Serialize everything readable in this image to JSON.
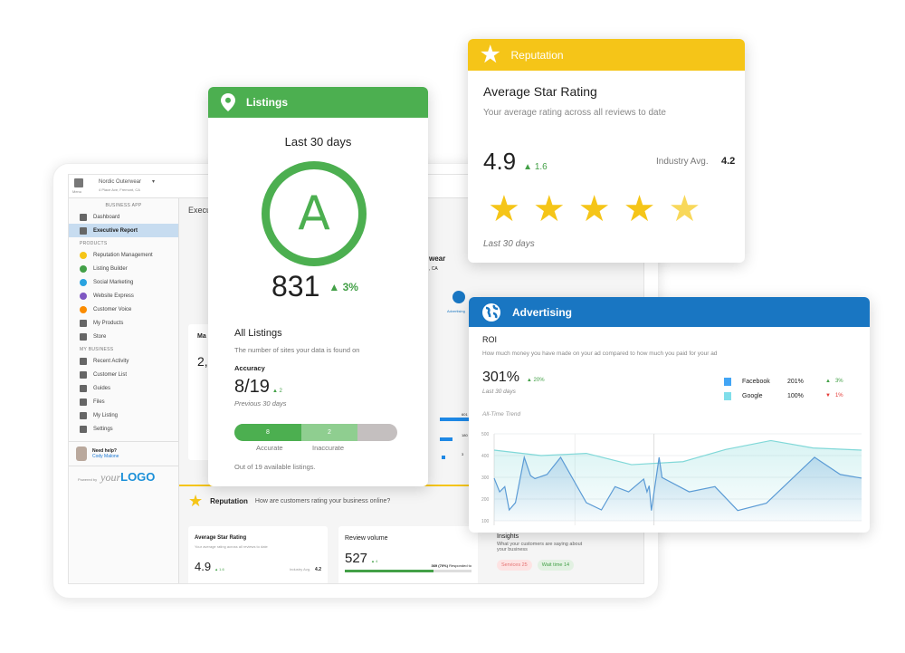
{
  "app": {
    "business_name": "Nordic Outerwear",
    "business_address": "4 Place Ave, Fremont, CA",
    "menu_label": "Menu",
    "page_title": "Executive Report",
    "sidebar": {
      "app_label": "BUSINESS APP",
      "top_items": [
        {
          "label": "Dashboard"
        },
        {
          "label": "Executive Report",
          "active": true
        }
      ],
      "products_label": "PRODUCTS",
      "products": [
        {
          "label": "Reputation Management",
          "color": "#f5c518"
        },
        {
          "label": "Listing Builder",
          "color": "#43a047"
        },
        {
          "label": "Social Marketing",
          "color": "#29a3e0"
        },
        {
          "label": "Website Express",
          "color": "#7e57c2"
        },
        {
          "label": "Customer Voice",
          "color": "#fb8c00"
        },
        {
          "label": "My Products"
        },
        {
          "label": "Store"
        }
      ],
      "business_label": "MY BUSINESS",
      "business": [
        {
          "label": "Recent Activity"
        },
        {
          "label": "Customer List"
        },
        {
          "label": "Guides"
        },
        {
          "label": "Files"
        },
        {
          "label": "My Listing"
        },
        {
          "label": "Settings"
        }
      ],
      "help_label": "Need help?",
      "help_contact": "Cody Malone",
      "powered_by": "Powered by",
      "logo_your": "your",
      "logo_logo": "LOGO"
    },
    "background": {
      "panel_title_partial": "Ma",
      "panel_value_partial": "2,",
      "name_partial": "wear",
      "addr_partial": ", CA",
      "advertising_icon_label": "Advertising",
      "bar_values": [
        "601",
        "180",
        "3"
      ]
    },
    "reputation_section": {
      "title": "Reputation",
      "subtitle": "How are customers rating your business online?",
      "avg": {
        "title": "Average Star Rating",
        "desc": "Your average rating across all reviews to date",
        "value": "4.9",
        "change": "1.6",
        "industry_label": "Industry Avg.",
        "industry_value": "4.2"
      },
      "volume": {
        "title": "Review volume",
        "value": "527",
        "change": "4",
        "responded": "369 (70%)",
        "responded_label": "Responded to",
        "progress": 0.7
      },
      "insights": {
        "title": "Insights",
        "desc": "What your customers are saying about your business",
        "tags": [
          {
            "label": "Services 25",
            "tone": "negative"
          },
          {
            "label": "Wait time 14",
            "tone": "positive"
          }
        ]
      }
    }
  },
  "listings_card": {
    "header": "Listings",
    "period": "Last 30 days",
    "grade": "A",
    "score": "831",
    "score_change": "3%",
    "all_title": "All Listings",
    "all_desc": "The number of sites your data is found on",
    "accuracy_label": "Accuracy",
    "accuracy_value": "8/19",
    "accuracy_change": "2",
    "accuracy_period": "Previous 30 days",
    "bar": {
      "accurate": 8,
      "inaccurate": 2,
      "total": 19,
      "accurate_label": "Accurate",
      "inaccurate_label": "Inaccurate",
      "accurate_value": "8",
      "inaccurate_value": "2"
    },
    "footer": "Out of 19 available listings.",
    "colors": {
      "header": "#4caf50",
      "accurate": "#4caf50",
      "inaccurate": "#8fce90",
      "rest": "#c4bfbf"
    }
  },
  "reputation_card": {
    "header": "Reputation",
    "title": "Average Star Rating",
    "desc": "Your average rating across all reviews to date",
    "value": "4.9",
    "change": "1.6",
    "industry_label": "Industry Avg.",
    "industry_value": "4.2",
    "rating": 4.9,
    "stars_max": 5,
    "period": "Last 30 days",
    "color": "#f5c518"
  },
  "advertising_card": {
    "header": "Advertising",
    "title": "ROI",
    "desc": "How much money you have made on your ad compared to how much you paid for your ad",
    "value": "301%",
    "change": "20%",
    "period": "Last 30 days",
    "legend": [
      {
        "name": "Facebook",
        "value": "201%",
        "change": "3%",
        "direction": "up",
        "color": "#42a5f5"
      },
      {
        "name": "Google",
        "value": "100%",
        "change": "1%",
        "direction": "down",
        "color": "#80deea"
      }
    ],
    "trend_label": "All-Time Trend",
    "color": "#1976c2"
  },
  "chart_data": {
    "type": "line",
    "title": "All-Time Trend",
    "ylim": [
      100,
      500
    ],
    "yticks": [
      "500",
      "400",
      "300",
      "200",
      "100"
    ],
    "grid": true,
    "legend": "top-right",
    "series": [
      {
        "name": "Facebook",
        "color": "#5b9bd5",
        "fill": true,
        "x": [
          0,
          1.5,
          2.9,
          4.1,
          5.8,
          8.2,
          9.9,
          11.1,
          14.4,
          18.1,
          25.1,
          29.2,
          32.9,
          36.6,
          40.7,
          41.6,
          42.2,
          42.8,
          44.9,
          45.7,
          53.1,
          60.1,
          66.3,
          74.1,
          87.2,
          94.2,
          100
        ],
        "values": [
          296,
          233,
          257,
          150,
          183,
          392,
          308,
          294,
          313,
          392,
          183,
          150,
          257,
          233,
          292,
          233,
          261,
          147,
          392,
          299,
          233,
          257,
          147,
          181,
          392,
          313,
          296
        ]
      },
      {
        "name": "Google",
        "color": "#80d8d8",
        "fill": true,
        "x": [
          0,
          12.8,
          25.1,
          37.4,
          51.4,
          63,
          75.3,
          86.8,
          100
        ],
        "values": [
          425,
          400,
          410,
          358,
          372,
          428,
          469,
          435,
          425
        ]
      }
    ]
  }
}
